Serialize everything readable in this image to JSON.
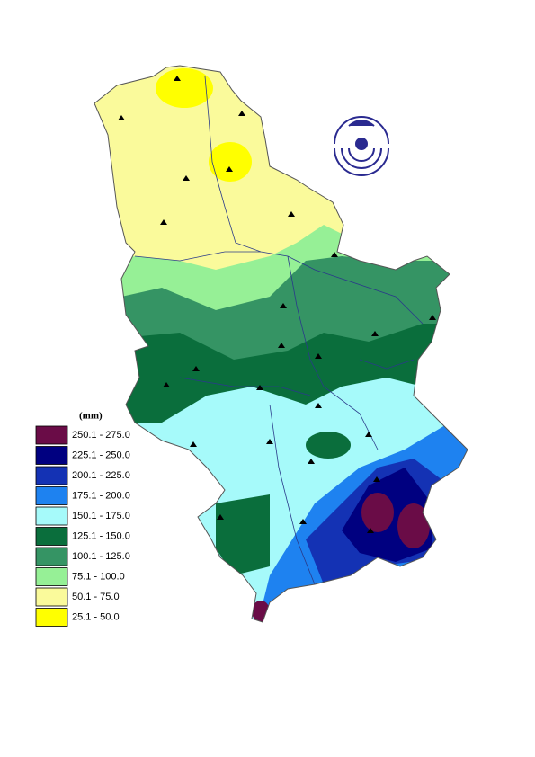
{
  "legend": {
    "unit": "(mm)",
    "items": [
      {
        "label": "250.1 - 275.0",
        "color": "#6a0c47"
      },
      {
        "label": "225.1 - 250.0",
        "color": "#000080"
      },
      {
        "label": "200.1 - 225.0",
        "color": "#1432b4"
      },
      {
        "label": "175.1 - 200.0",
        "color": "#1e82f0"
      },
      {
        "label": "150.1 - 175.0",
        "color": "#a6fafa"
      },
      {
        "label": "125.1 - 150.0",
        "color": "#0a6e3c"
      },
      {
        "label": "100.1 - 125.0",
        "color": "#359464"
      },
      {
        "label": "75.1 - 100.0",
        "color": "#96f096"
      },
      {
        "label": "50.1 - 75.0",
        "color": "#fafa9b"
      },
      {
        "label": "25.1 - 50.0",
        "color": "#ffff00"
      }
    ]
  }
}
